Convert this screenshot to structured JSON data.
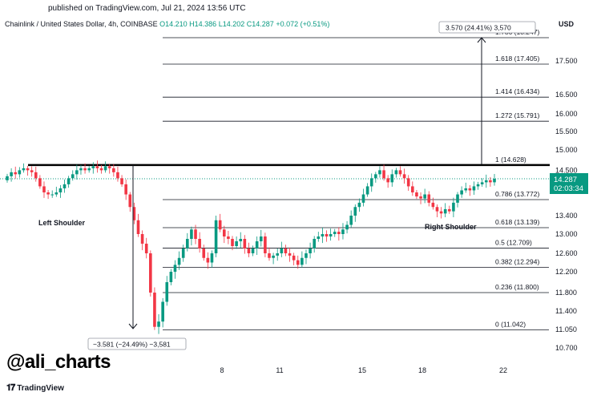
{
  "header": {
    "published": "published on TradingView.com, Jul 21, 2024 13:56 UTC"
  },
  "legend": {
    "symbol": "Chainlink / United States Dollar, 4h, COINBASE",
    "open": "O14.210",
    "high": "H14.386",
    "low": "L14.202",
    "close": "C14.287",
    "change": "+0.072 (+0.51%)"
  },
  "currency": "USD",
  "watermark": "@ali_charts",
  "brand": "TradingView",
  "colors": {
    "up": "#089981",
    "down": "#f23645",
    "price_label_bg": "#089981",
    "level_line": "#131722"
  },
  "chart_data": {
    "type": "candlestick",
    "title": "Chainlink / United States Dollar, 4h, COINBASE",
    "x_ticks": [
      "8",
      "11",
      "15",
      "18",
      "22"
    ],
    "y_ticks": [
      "17.500",
      "16.500",
      "16.000",
      "15.500",
      "15.000",
      "14.500",
      "13.400",
      "13.000",
      "12.600",
      "12.200",
      "11.800",
      "11.400",
      "11.050",
      "10.700"
    ],
    "current_price": "14.287",
    "countdown": "02:03:34",
    "fib_levels": [
      {
        "label": "1.786 (18.247)",
        "value": 18.247
      },
      {
        "label": "1.618 (17.405)",
        "value": 17.405
      },
      {
        "label": "1.414 (16.434)",
        "value": 16.434
      },
      {
        "label": "1.272 (15.791)",
        "value": 15.791
      },
      {
        "label": "1 (14.628)",
        "value": 14.628
      },
      {
        "label": "0.786 (13.772)",
        "value": 13.772
      },
      {
        "label": "0.618 (13.139)",
        "value": 13.139
      },
      {
        "label": "0.5 (12.709)",
        "value": 12.709
      },
      {
        "label": "0.382 (12.294)",
        "value": 12.294
      },
      {
        "label": "0.236 (11.800)",
        "value": 11.8
      },
      {
        "label": "0 (11.042)",
        "value": 11.042
      }
    ],
    "neckline": 14.63,
    "annotations": [
      {
        "text": "Left Shoulder"
      },
      {
        "text": "Right Shoulder"
      },
      {
        "text": "3.570 (24.41%) 3,570"
      },
      {
        "text": "−3.581 (−24.49%) −3,581"
      }
    ],
    "close_series": [
      14.35,
      14.45,
      14.4,
      14.5,
      14.55,
      14.5,
      14.45,
      14.3,
      14.1,
      13.95,
      13.9,
      13.9,
      13.95,
      14.05,
      14.15,
      14.3,
      14.4,
      14.5,
      14.55,
      14.5,
      14.55,
      14.6,
      14.55,
      14.5,
      14.6,
      14.55,
      14.45,
      14.3,
      14.15,
      13.9,
      13.6,
      13.3,
      13.0,
      12.8,
      12.6,
      11.8,
      11.1,
      11.2,
      11.6,
      12.0,
      12.2,
      12.35,
      12.5,
      12.7,
      12.9,
      13.1,
      12.9,
      12.7,
      12.5,
      12.4,
      12.6,
      13.3,
      13.1,
      12.95,
      12.9,
      12.75,
      12.85,
      12.9,
      12.7,
      12.6,
      12.7,
      12.85,
      12.95,
      12.6,
      12.5,
      12.55,
      12.6,
      12.7,
      12.6,
      12.55,
      12.45,
      12.35,
      12.5,
      12.6,
      12.7,
      12.9,
      12.95,
      13.0,
      12.95,
      13.0,
      13.05,
      13.0,
      13.1,
      13.2,
      13.4,
      13.6,
      13.7,
      13.9,
      14.1,
      14.3,
      14.4,
      14.5,
      14.3,
      14.2,
      14.4,
      14.5,
      14.4,
      14.3,
      14.1,
      13.95,
      13.85,
      13.8,
      13.9,
      13.7,
      13.6,
      13.5,
      13.45,
      13.55,
      13.5,
      13.7,
      13.9,
      14.0,
      14.05,
      14.0,
      14.1,
      14.15,
      14.2,
      14.25,
      14.2,
      14.287
    ]
  }
}
